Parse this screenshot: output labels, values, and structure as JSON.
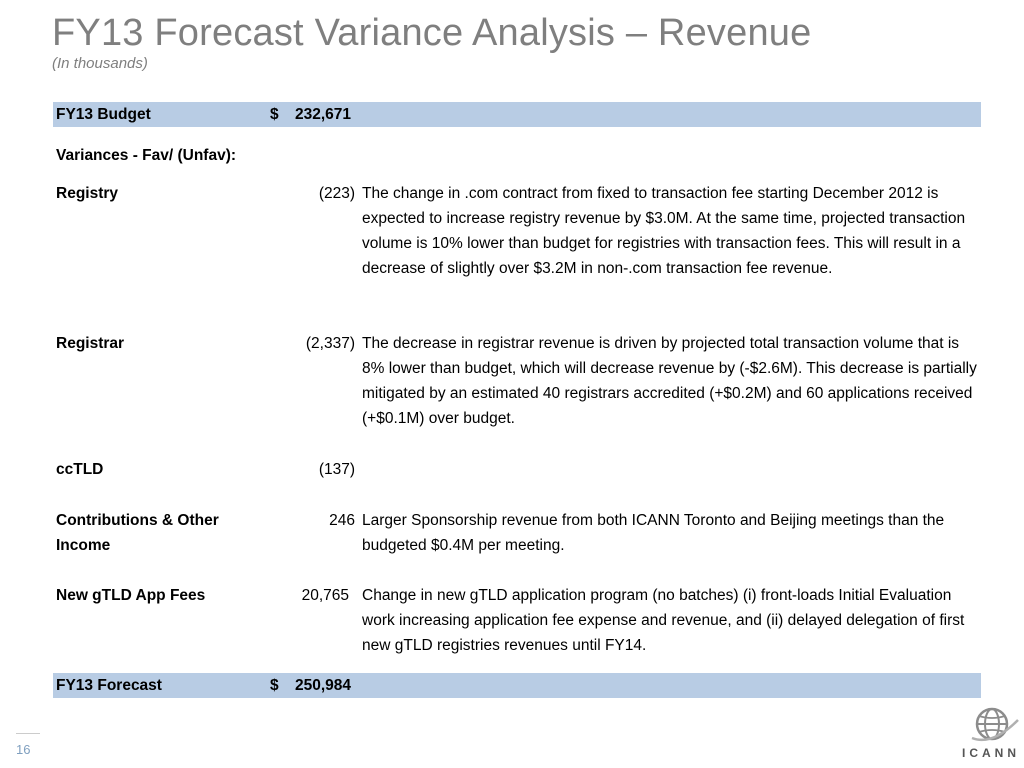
{
  "title": "FY13 Forecast Variance Analysis – Revenue",
  "subtitle": "(In thousands)",
  "budget": {
    "label": "FY13 Budget",
    "currency": "$",
    "amount": "232,671"
  },
  "variances_heading": "Variances - Fav/ (Unfav):",
  "rows": [
    {
      "label": "Registry",
      "amount": "(223)",
      "desc": "The change in .com contract from fixed to transaction fee starting December 2012 is expected to increase registry revenue by $3.0M. At the same time, projected transaction volume is 10% lower than budget for registries with transaction fees. This will result in a decrease of slightly over $3.2M in non-.com transaction fee revenue."
    },
    {
      "label": "Registrar",
      "amount": "(2,337)",
      "desc": "The decrease in registrar revenue is driven by projected total transaction volume that is 8% lower than budget, which will decrease revenue by (-$2.6M). This decrease is partially mitigated by an estimated 40 registrars accredited (+$0.2M) and 60 applications received (+$0.1M) over budget."
    },
    {
      "label": "ccTLD",
      "amount": "(137)",
      "desc": ""
    },
    {
      "label": "Contributions & Other Income",
      "amount": "246",
      "desc": "Larger Sponsorship revenue from both ICANN Toronto and Beijing meetings than the budgeted $0.4M per meeting."
    },
    {
      "label": "New gTLD App Fees",
      "amount": "20,765",
      "desc": "Change in new gTLD application program (no batches) (i) front-loads Initial Evaluation work increasing application fee expense and revenue, and (ii) delayed delegation of first new gTLD registries revenues until FY14."
    }
  ],
  "forecast": {
    "label": "FY13 Forecast",
    "currency": "$",
    "amount": "250,984"
  },
  "page_number": "16",
  "logo_text": "ICANN",
  "colors": {
    "band": "#b8cce4",
    "title": "#7f7f7f"
  }
}
